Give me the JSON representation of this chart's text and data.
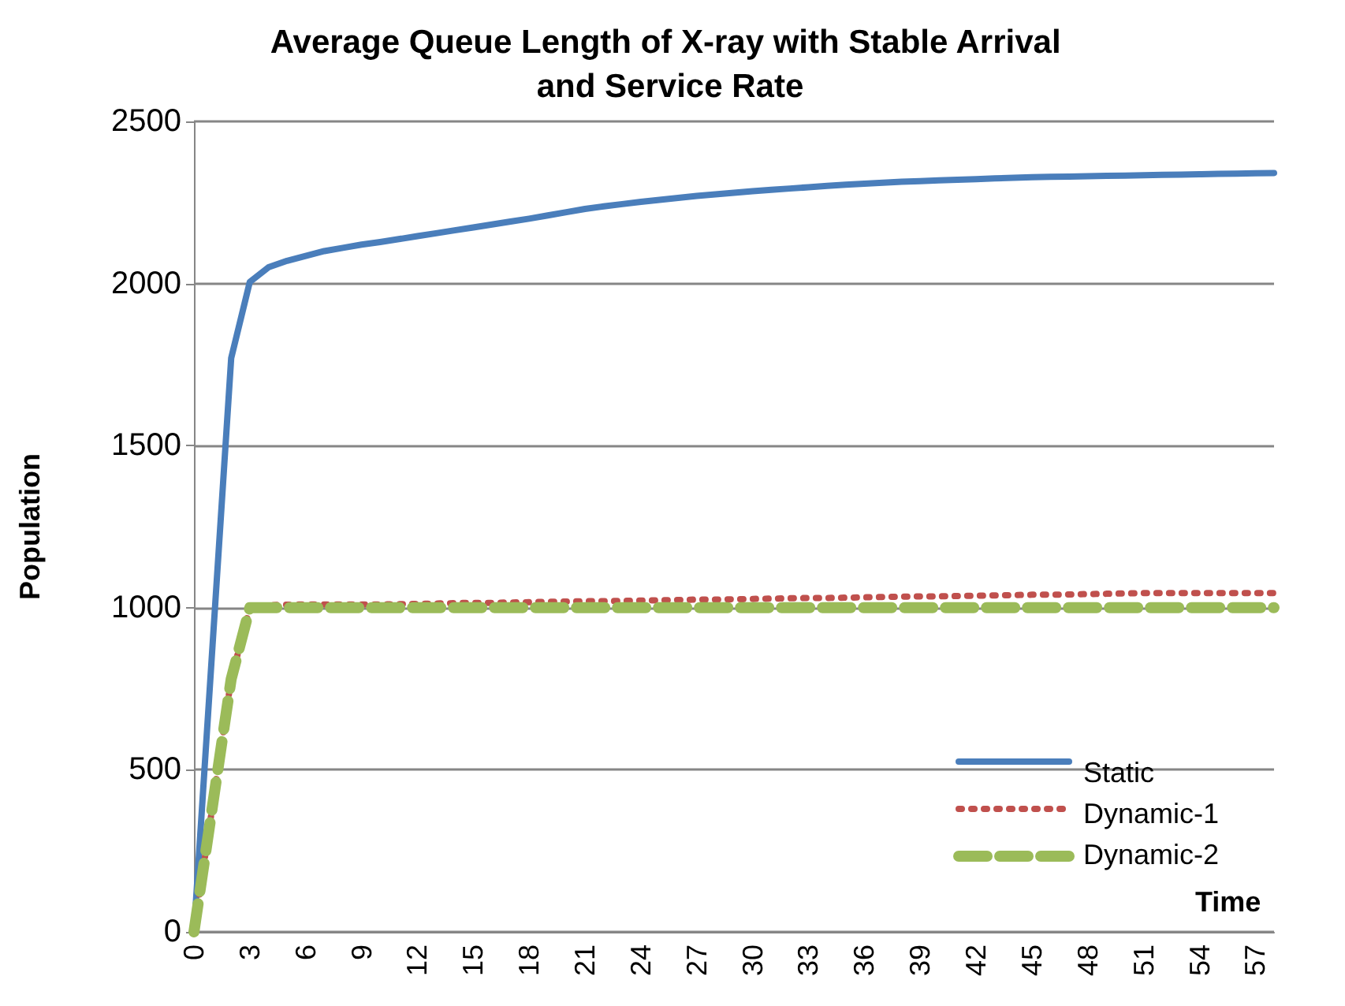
{
  "chart_data": {
    "type": "line",
    "title": "Average Queue Length of X-ray with Stable Arrival and Service Rate",
    "xlabel": "Time",
    "ylabel": "Population",
    "categories": [
      "0",
      null,
      null,
      "3",
      null,
      null,
      "6",
      null,
      null,
      "9",
      null,
      null,
      "12",
      null,
      null,
      "15",
      null,
      null,
      "18",
      null,
      null,
      "21",
      null,
      null,
      "24",
      null,
      null,
      "27",
      null,
      null,
      "30",
      null,
      null,
      "33",
      null,
      null,
      "36",
      null,
      null,
      "39",
      null,
      null,
      "42",
      null,
      null,
      "45",
      null,
      null,
      "48",
      null,
      null,
      "51",
      null,
      null,
      "54",
      null,
      null,
      "57",
      null
    ],
    "ylim": [
      0,
      2500
    ],
    "yticks": [
      0,
      500,
      1000,
      1500,
      2000,
      2500
    ],
    "grid": "y",
    "legend": "bottom right",
    "marker": "none",
    "series": [
      {
        "name": "Static",
        "color": "#4a7ebb",
        "line_style": "solid",
        "values": [
          0,
          885,
          1770,
          2005,
          2050,
          2070,
          2085,
          2100,
          2110,
          2120,
          2128,
          2137,
          2146,
          2155,
          2164,
          2173,
          2182,
          2191,
          2200,
          2210,
          2220,
          2230,
          2238,
          2245,
          2252,
          2258,
          2264,
          2270,
          2275,
          2280,
          2285,
          2289,
          2293,
          2297,
          2301,
          2305,
          2308,
          2311,
          2314,
          2316,
          2318,
          2320,
          2322,
          2324,
          2326,
          2328,
          2329,
          2330,
          2331,
          2332,
          2333,
          2334,
          2335,
          2336,
          2337,
          2338,
          2339,
          2340,
          2341
        ]
      },
      {
        "name": "Dynamic-1",
        "color": "#c0504d",
        "line_style": "dotted",
        "values": [
          0,
          390,
          780,
          1000,
          1008,
          1009,
          1010,
          1010,
          1010,
          1010,
          1010,
          1011,
          1012,
          1013,
          1014,
          1015,
          1015,
          1016,
          1017,
          1018,
          1019,
          1020,
          1020,
          1021,
          1022,
          1023,
          1024,
          1025,
          1025,
          1026,
          1027,
          1028,
          1029,
          1030,
          1030,
          1031,
          1032,
          1033,
          1034,
          1035,
          1035,
          1036,
          1037,
          1038,
          1039,
          1040,
          1040,
          1041,
          1042,
          1043,
          1044,
          1045,
          1045,
          1045,
          1045,
          1045,
          1045,
          1045,
          1045
        ]
      },
      {
        "name": "Dynamic-2",
        "color": "#9bbb59",
        "line_style": "dashed",
        "values": [
          0,
          390,
          780,
          1000,
          1000,
          1000,
          1000,
          1000,
          1000,
          1000,
          1000,
          1000,
          1000,
          1000,
          1000,
          1000,
          1000,
          1000,
          1000,
          1000,
          1000,
          1000,
          1000,
          1000,
          1000,
          1000,
          1000,
          1000,
          1000,
          1000,
          1000,
          1000,
          1000,
          1000,
          1000,
          1000,
          1000,
          1000,
          1000,
          1000,
          1000,
          1000,
          1000,
          1000,
          1000,
          1000,
          1000,
          1000,
          1000,
          1000,
          1000,
          1000,
          1000,
          1000,
          1000,
          1000,
          1000,
          1000,
          1000
        ]
      }
    ]
  }
}
